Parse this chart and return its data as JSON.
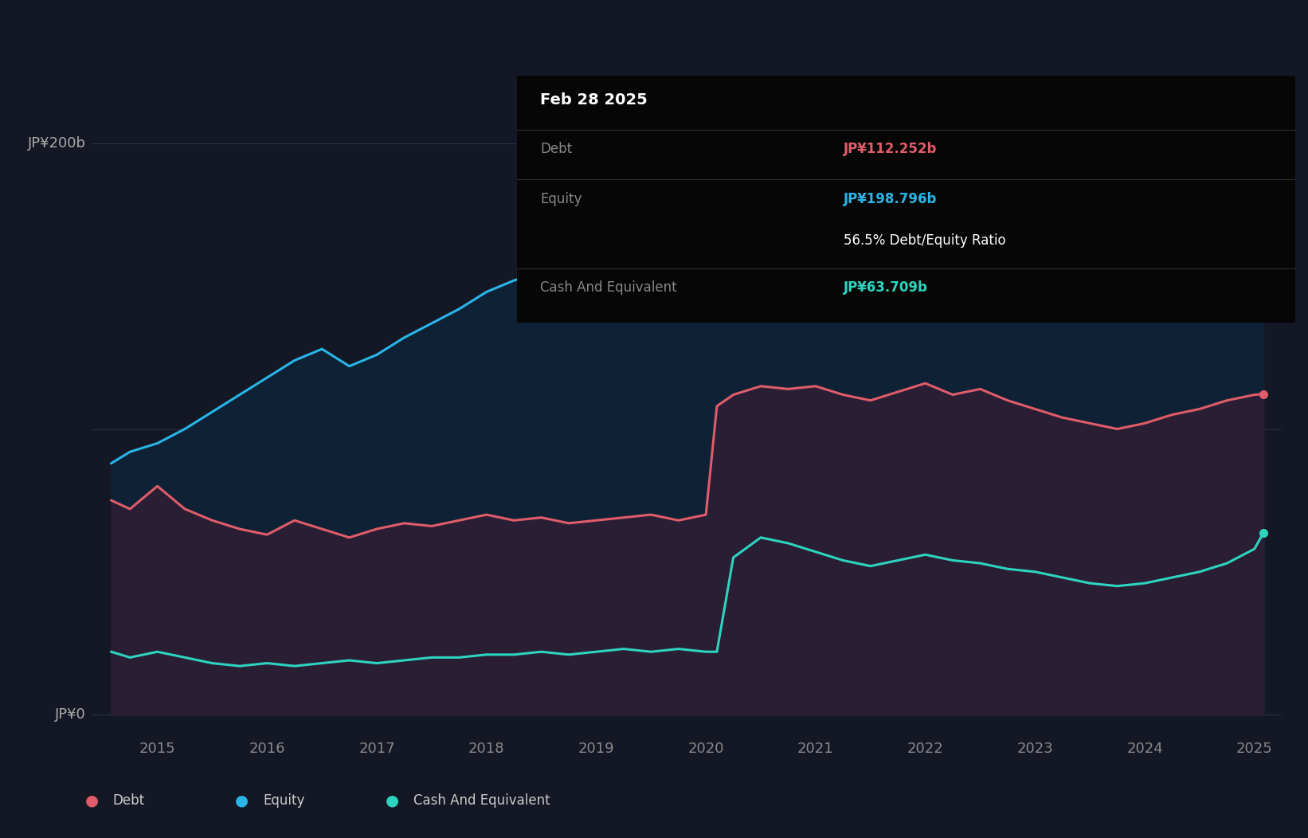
{
  "background_color": "#141824",
  "plot_bg_color": "#141824",
  "ylabel_200": "JP¥200b",
  "ylabel_0": "JP¥0",
  "x_ticks": [
    2015,
    2016,
    2017,
    2018,
    2019,
    2020,
    2021,
    2022,
    2023,
    2024,
    2025
  ],
  "equity_color": "#29b5e8",
  "debt_color": "#e05c6a",
  "cash_color": "#2dd4bf",
  "grid_color": "#2a3050",
  "tooltip_bg": "#050505",
  "tooltip_date": "Feb 28 2025",
  "tooltip_debt_label": "Debt",
  "tooltip_debt_value": "JP¥112.252b",
  "tooltip_equity_label": "Equity",
  "tooltip_equity_value": "JP¥198.796b",
  "tooltip_ratio": "56.5% Debt/Equity Ratio",
  "tooltip_cash_label": "Cash And Equivalent",
  "tooltip_cash_value": "JP¥63.709b",
  "legend_items": [
    "Debt",
    "Equity",
    "Cash And Equivalent"
  ],
  "legend_colors": [
    "#e05c6a",
    "#29b5e8",
    "#2dd4bf"
  ],
  "years": [
    2014.58,
    2014.75,
    2015.0,
    2015.25,
    2015.5,
    2015.75,
    2016.0,
    2016.25,
    2016.5,
    2016.75,
    2017.0,
    2017.25,
    2017.5,
    2017.75,
    2018.0,
    2018.25,
    2018.5,
    2018.75,
    2019.0,
    2019.25,
    2019.5,
    2019.75,
    2020.0,
    2020.1,
    2020.25,
    2020.5,
    2020.75,
    2021.0,
    2021.25,
    2021.5,
    2021.75,
    2022.0,
    2022.25,
    2022.5,
    2022.75,
    2023.0,
    2023.25,
    2023.5,
    2023.75,
    2024.0,
    2024.25,
    2024.5,
    2024.75,
    2025.0,
    2025.083
  ],
  "equity": [
    88,
    92,
    95,
    100,
    106,
    112,
    118,
    124,
    128,
    122,
    126,
    132,
    137,
    142,
    148,
    152,
    155,
    157,
    158,
    160,
    161,
    162,
    158,
    152,
    158,
    165,
    172,
    178,
    180,
    178,
    177,
    180,
    183,
    182,
    180,
    181,
    178,
    176,
    174,
    176,
    180,
    184,
    190,
    196,
    198.796
  ],
  "debt": [
    75,
    72,
    80,
    72,
    68,
    65,
    63,
    68,
    65,
    62,
    65,
    67,
    66,
    68,
    70,
    68,
    69,
    67,
    68,
    69,
    70,
    68,
    70,
    108,
    112,
    115,
    114,
    115,
    112,
    110,
    113,
    116,
    112,
    114,
    110,
    107,
    104,
    102,
    100,
    102,
    105,
    107,
    110,
    112,
    112.252
  ],
  "cash": [
    22,
    20,
    22,
    20,
    18,
    17,
    18,
    17,
    18,
    19,
    18,
    19,
    20,
    20,
    21,
    21,
    22,
    21,
    22,
    23,
    22,
    23,
    22,
    22,
    55,
    62,
    60,
    57,
    54,
    52,
    54,
    56,
    54,
    53,
    51,
    50,
    48,
    46,
    45,
    46,
    48,
    50,
    53,
    58,
    63.709
  ]
}
